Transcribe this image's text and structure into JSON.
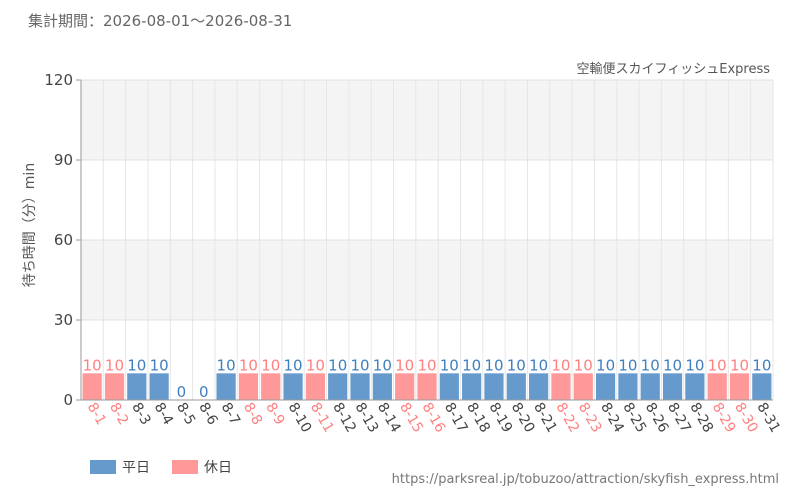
{
  "header": {
    "period_label": "集計期間：2026-08-01～2026-08-31"
  },
  "attraction_name": "空輸便スカイフィッシュExpress",
  "footer": {
    "source_url": "https://parksreal.jp/tobuzoo/attraction/skyfish_express.html"
  },
  "legend": {
    "weekday_label": "平日",
    "holiday_label": "休日"
  },
  "colors": {
    "weekday": "#6699cc",
    "holiday": "#ff9999",
    "weekday_label_text": "#3f7fbf",
    "holiday_label_text": "#ff8080",
    "band": "#f4f4f4"
  },
  "chart_data": {
    "type": "bar",
    "title": "",
    "xlabel": "",
    "ylabel": "待ち時間（分）min",
    "ylim": [
      0,
      120
    ],
    "yticks": [
      0,
      30,
      60,
      90,
      120
    ],
    "grid": true,
    "legend_position": "bottom-left",
    "categories": [
      "8-1",
      "8-2",
      "8-3",
      "8-4",
      "8-5",
      "8-6",
      "8-7",
      "8-8",
      "8-9",
      "8-10",
      "8-11",
      "8-12",
      "8-13",
      "8-14",
      "8-15",
      "8-16",
      "8-17",
      "8-18",
      "8-19",
      "8-20",
      "8-21",
      "8-22",
      "8-23",
      "8-24",
      "8-25",
      "8-26",
      "8-27",
      "8-28",
      "8-29",
      "8-30",
      "8-31"
    ],
    "values": [
      10,
      10,
      10,
      10,
      0,
      0,
      10,
      10,
      10,
      10,
      10,
      10,
      10,
      10,
      10,
      10,
      10,
      10,
      10,
      10,
      10,
      10,
      10,
      10,
      10,
      10,
      10,
      10,
      10,
      10,
      10
    ],
    "day_type": [
      "holiday",
      "holiday",
      "weekday",
      "weekday",
      "weekday",
      "weekday",
      "weekday",
      "holiday",
      "holiday",
      "weekday",
      "holiday",
      "weekday",
      "weekday",
      "weekday",
      "holiday",
      "holiday",
      "weekday",
      "weekday",
      "weekday",
      "weekday",
      "weekday",
      "holiday",
      "holiday",
      "weekday",
      "weekday",
      "weekday",
      "weekday",
      "weekday",
      "holiday",
      "holiday",
      "weekday"
    ],
    "series": [
      {
        "name": "平日"
      },
      {
        "name": "休日"
      }
    ]
  }
}
